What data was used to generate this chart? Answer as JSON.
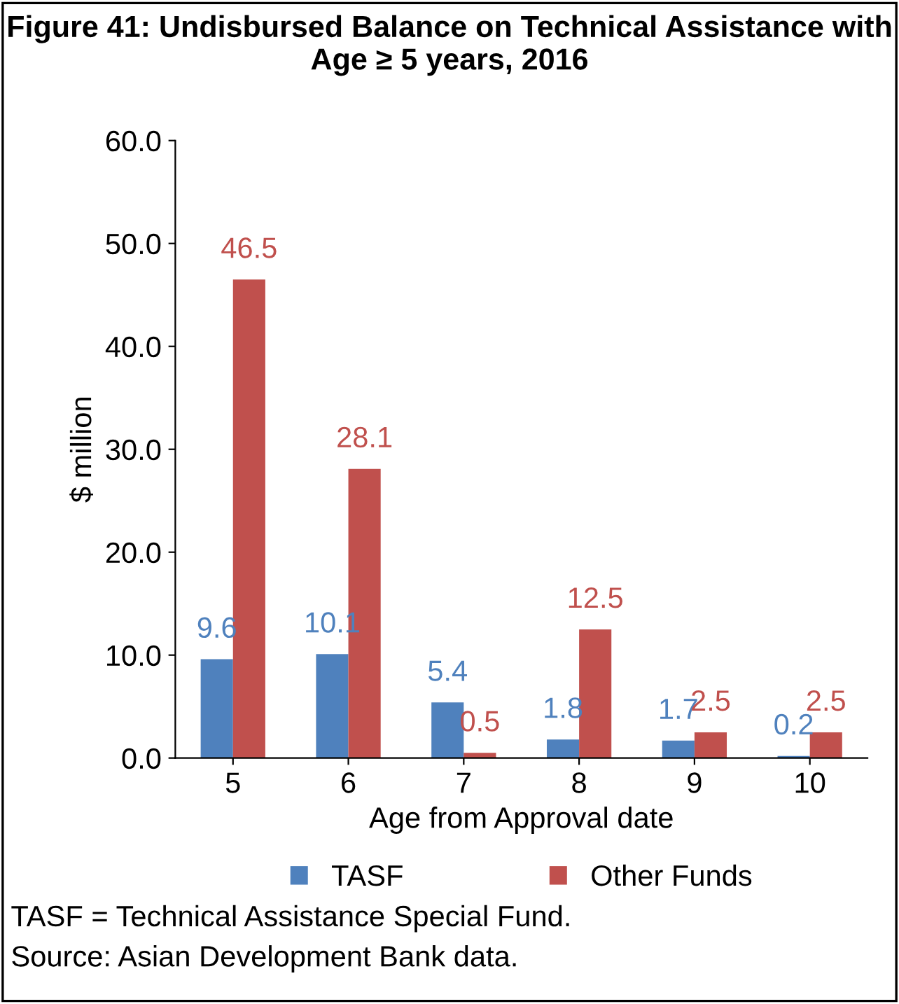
{
  "chart_data": {
    "type": "bar",
    "title": "Figure 41: Undisbursed Balance on Technical Assistance with Age ≥ 5 years, 2016",
    "xlabel": "Age from Approval date",
    "ylabel": "$ million",
    "categories": [
      "5",
      "6",
      "7",
      "8",
      "9",
      "10"
    ],
    "series": [
      {
        "name": "TASF",
        "color": "#4f81bd",
        "values": [
          9.6,
          10.1,
          5.4,
          1.8,
          1.7,
          0.2
        ]
      },
      {
        "name": "Other Funds",
        "color": "#c0504d",
        "values": [
          46.5,
          28.1,
          0.5,
          12.5,
          2.5,
          2.5
        ]
      }
    ],
    "ylim": [
      0,
      60
    ],
    "yticks": [
      {
        "value": 0,
        "label": "0.0"
      },
      {
        "value": 10,
        "label": "10.0"
      },
      {
        "value": 20,
        "label": "20.0"
      },
      {
        "value": 30,
        "label": "30.0"
      },
      {
        "value": 40,
        "label": "40.0"
      },
      {
        "value": 50,
        "label": "50.0"
      },
      {
        "value": 60,
        "label": "60.0"
      }
    ],
    "data_labels": true,
    "grid": false,
    "legend": "bottom",
    "annotations": [
      "TASF = Technical Assistance Special Fund.",
      "Source: Asian Development Bank data."
    ]
  }
}
